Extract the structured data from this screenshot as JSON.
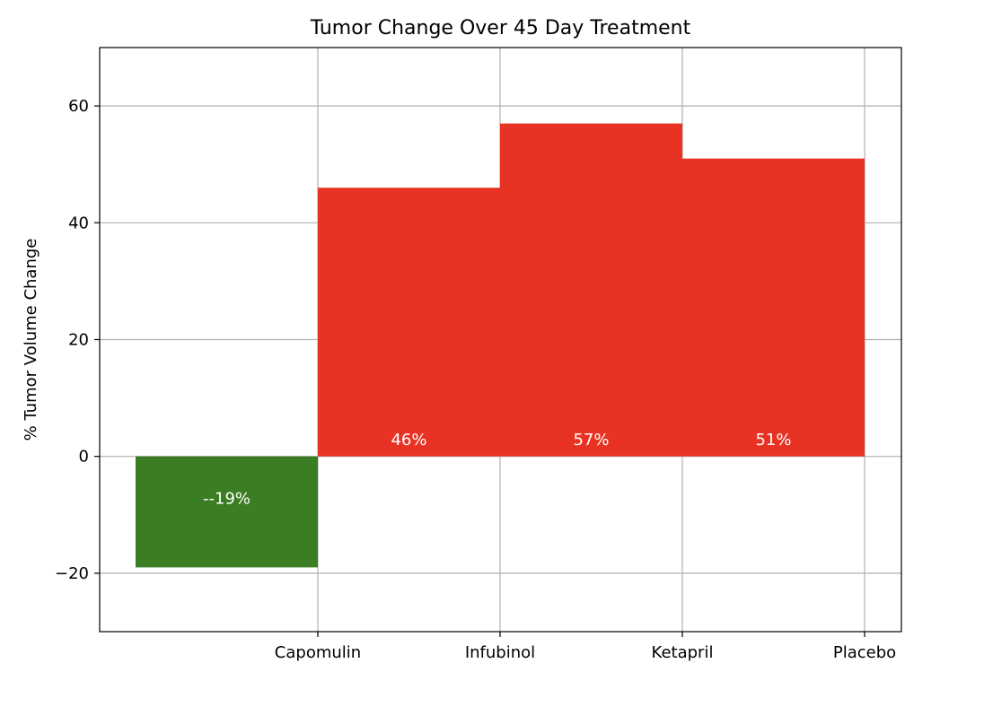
{
  "chart_data": {
    "type": "bar",
    "title": "Tumor Change Over 45 Day Treatment",
    "xlabel": "",
    "ylabel": "% Tumor Volume Change",
    "categories": [
      "Capomulin",
      "Infubinol",
      "Ketapril",
      "Placebo"
    ],
    "values": [
      -19,
      46,
      57,
      51
    ],
    "bar_labels": [
      "--19%",
      "46%",
      "57%",
      "51%"
    ],
    "ylim": [
      -30,
      70
    ],
    "yticks": [
      -20,
      0,
      20,
      40,
      60
    ],
    "ytick_labels": [
      "−20",
      "0",
      "20",
      "40",
      "60"
    ],
    "grid": true,
    "colors": {
      "positive": "#e83324",
      "negative": "#3a7d22",
      "bar_label": "#ffffff",
      "grid": "#b0b0b0",
      "axes": "#000000"
    }
  }
}
